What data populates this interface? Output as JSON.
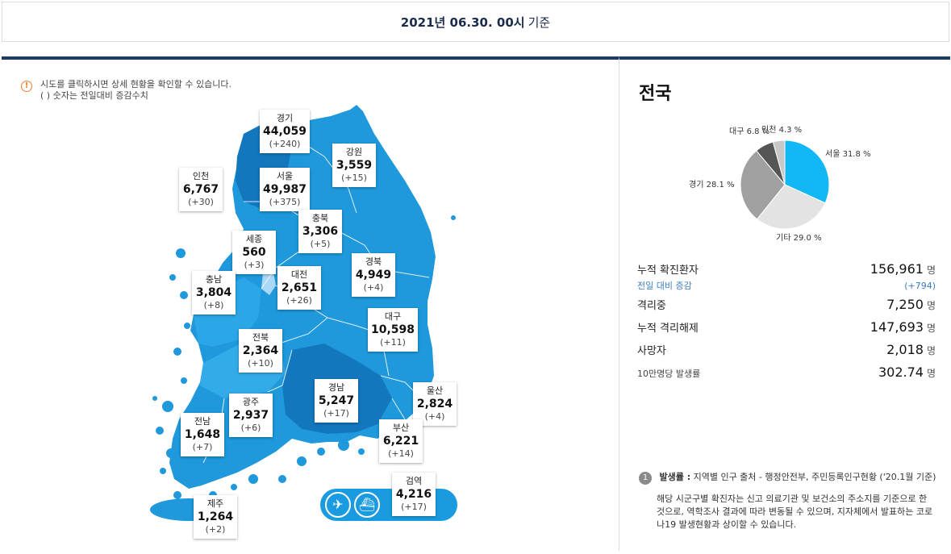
{
  "header": {
    "date": "2021년 06.30. 00시",
    "basis": "기준"
  },
  "notice": {
    "line1": "시도를 클릭하시면 상세 현황을 확인할 수 있습니다.",
    "line2": "( ) 숫자는 전일대비 증감수치"
  },
  "regions": {
    "gyeonggi": {
      "name": "경기",
      "value": "44,059",
      "inc": "(+240)"
    },
    "gangwon": {
      "name": "강원",
      "value": "3,559",
      "inc": "(+15)"
    },
    "incheon": {
      "name": "인천",
      "value": "6,767",
      "inc": "(+30)"
    },
    "seoul": {
      "name": "서울",
      "value": "49,987",
      "inc": "(+375)"
    },
    "chungbuk": {
      "name": "충북",
      "value": "3,306",
      "inc": "(+5)"
    },
    "sejong": {
      "name": "세종",
      "value": "560",
      "inc": "(+3)"
    },
    "gyeongbuk": {
      "name": "경북",
      "value": "4,949",
      "inc": "(+4)"
    },
    "chungnam": {
      "name": "충남",
      "value": "3,804",
      "inc": "(+8)"
    },
    "daejeon": {
      "name": "대전",
      "value": "2,651",
      "inc": "(+26)"
    },
    "daegu": {
      "name": "대구",
      "value": "10,598",
      "inc": "(+11)"
    },
    "jeonbuk": {
      "name": "전북",
      "value": "2,364",
      "inc": "(+10)"
    },
    "gyeongnam": {
      "name": "경남",
      "value": "5,247",
      "inc": "(+17)"
    },
    "ulsan": {
      "name": "울산",
      "value": "2,824",
      "inc": "(+4)"
    },
    "gwangju": {
      "name": "광주",
      "value": "2,937",
      "inc": "(+6)"
    },
    "jeonnam": {
      "name": "전남",
      "value": "1,648",
      "inc": "(+7)"
    },
    "busan": {
      "name": "부산",
      "value": "6,221",
      "inc": "(+14)"
    },
    "quarantine": {
      "name": "검역",
      "value": "4,216",
      "inc": "(+17)"
    },
    "jeju": {
      "name": "제주",
      "value": "1,264",
      "inc": "(+2)"
    }
  },
  "national": {
    "title": "전국",
    "pie": [
      {
        "name": "서울",
        "pct": 31.8,
        "label": "서울 31.8 %",
        "color": "#12b8f5"
      },
      {
        "name": "기타",
        "pct": 29.0,
        "label": "기타 29.0 %",
        "color": "#e3e3e3"
      },
      {
        "name": "경기",
        "pct": 28.1,
        "label": "경기 28.1 %",
        "color": "#a0a0a0"
      },
      {
        "name": "대구",
        "pct": 6.8,
        "label": "대구 6.8 %",
        "color": "#555555"
      },
      {
        "name": "인천",
        "pct": 4.3,
        "label": "인천 4.3 %",
        "color": "#c8c8c8"
      }
    ],
    "stats": {
      "confirmed_label": "누적 확진환자",
      "confirmed_value": "156,961",
      "unit": "명",
      "daily_label": "전일 대비 증감",
      "daily_value": "(+794)",
      "isolating_label": "격리중",
      "isolating_value": "7,250",
      "released_label": "누적 격리해제",
      "released_value": "147,693",
      "deaths_label": "사망자",
      "deaths_value": "2,018",
      "rate_label": "10만명당 발생률",
      "rate_value": "302.74"
    },
    "footnote": {
      "badge": "1",
      "title": "발생률 :",
      "source": "지역별 인구 출처 - 행정안전부, 주민등록인구현황 ('20.1월 기준)",
      "desc": "해당 시군구별 확진자는 신고 의료기관 및 보건소의 주소지를 기준으로 한 것으로, 역학조사 결과에 따라 변동될 수 있으며, 지자체에서 발표하는 코로나19 발생현황과 상이할 수 있습니다."
    }
  },
  "transport": {
    "airport_icon": "airplane-icon",
    "port_icon": "ship-icon"
  }
}
